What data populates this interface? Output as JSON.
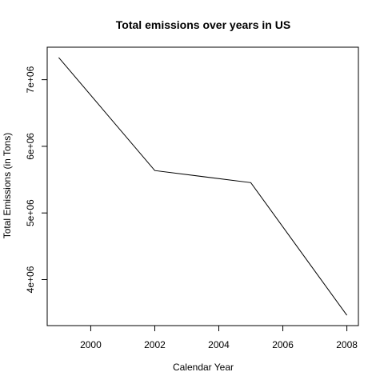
{
  "chart_data": {
    "type": "line",
    "title": "Total emissions over years in US",
    "xlabel": "Calendar Year",
    "ylabel": "Total Emissions (in Tons)",
    "x": [
      1999,
      2002,
      2005,
      2008
    ],
    "series": [
      {
        "values": [
          7332967,
          5635780,
          5454703,
          3464206
        ],
        "color": "#000000"
      }
    ],
    "x_ticks": [
      2000,
      2002,
      2004,
      2006,
      2008
    ],
    "x_tick_labels": [
      "2000",
      "2002",
      "2004",
      "2006",
      "2008"
    ],
    "y_ticks": [
      4000000,
      5000000,
      6000000,
      7000000
    ],
    "y_tick_labels": [
      "4e+06",
      "5e+06",
      "6e+06",
      "7e+06"
    ],
    "xlim": [
      1998.64,
      2008.36
    ],
    "ylim": [
      3309496,
      7487677
    ],
    "grid": false,
    "legend": "none"
  }
}
